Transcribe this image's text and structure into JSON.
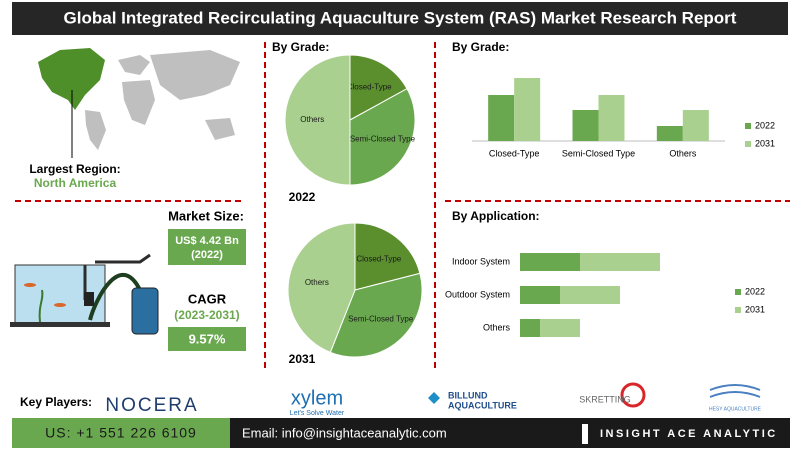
{
  "header": {
    "title": "Global Integrated Recirculating Aquaculture System (RAS) Market Research Report"
  },
  "region": {
    "label": "Largest Region:",
    "value": "North America"
  },
  "market": {
    "label": "Market Size:",
    "value": "US$ 4.42 Bn",
    "year": "(2022)"
  },
  "cagr": {
    "label": "CAGR",
    "period": "(2023-2031)",
    "value": "9.57%"
  },
  "chart_data": [
    {
      "type": "pie",
      "title": "By Grade:",
      "subtitle": "2022",
      "categories": [
        "Closed-Type",
        "Semi-Closed Type",
        "Others"
      ],
      "values": [
        17,
        33,
        50
      ],
      "colors": [
        "#5b8f2e",
        "#6aa84f",
        "#a9d08e"
      ]
    },
    {
      "type": "pie",
      "subtitle": "2031",
      "categories": [
        "Closed-Type",
        "Semi-Closed Type",
        "Others"
      ],
      "values": [
        21,
        35,
        44
      ],
      "colors": [
        "#5b8f2e",
        "#6aa84f",
        "#a9d08e"
      ]
    },
    {
      "type": "bar",
      "title": "By Grade:",
      "categories": [
        "Closed-Type",
        "Semi-Closed Type",
        "Others"
      ],
      "series": [
        {
          "name": "2022",
          "color": "#6aa84f",
          "values": [
            46,
            31,
            15
          ]
        },
        {
          "name": "2031",
          "color": "#a9d08e",
          "values": [
            63,
            46,
            31
          ]
        }
      ],
      "legend": "right"
    },
    {
      "type": "hbar",
      "stacked": true,
      "title": "By Application:",
      "categories": [
        "Indoor System",
        "Outdoor System",
        "Others"
      ],
      "series": [
        {
          "name": "2022",
          "color": "#6aa84f",
          "values": [
            60,
            40,
            20
          ]
        },
        {
          "name": "2031",
          "color": "#a9d08e",
          "values": [
            80,
            60,
            40
          ]
        }
      ],
      "legend": "right"
    }
  ],
  "players": {
    "label": "Key Players:",
    "logos": [
      {
        "name": "NOCERA"
      },
      {
        "name": "xylem",
        "tagline": "Let's Solve Water"
      },
      {
        "name": "BILLUND",
        "tagline": "AQUACULTURE"
      },
      {
        "name": "SKRETTING"
      },
      {
        "name": "HESY AQUACULTURE"
      }
    ]
  },
  "footer": {
    "phone": "US: +1 551 226 6109",
    "email": "Email: info@insightaceanalytic.com",
    "brand": "INSIGHT ACE ANALYTIC"
  }
}
